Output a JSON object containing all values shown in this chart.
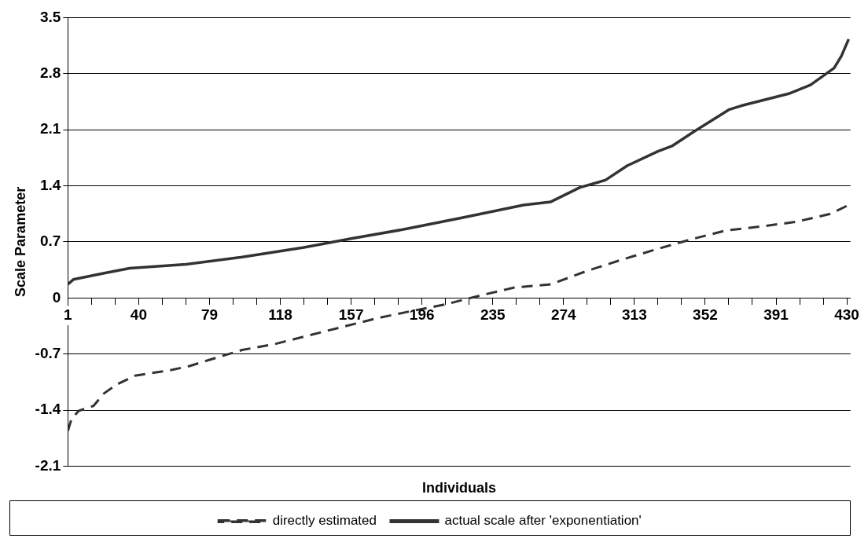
{
  "chart_data": {
    "type": "line",
    "xlabel": "Individuals",
    "ylabel": "Scale Parameter",
    "xlim": [
      1,
      432
    ],
    "ylim": [
      -2.1,
      3.5
    ],
    "xticks": [
      1,
      {
        "value": 14,
        "label": null
      },
      {
        "value": 27,
        "label": null
      },
      40,
      {
        "value": 53,
        "label": null
      },
      {
        "value": 66,
        "label": null
      },
      79,
      {
        "value": 92,
        "label": null
      },
      {
        "value": 105,
        "label": null
      },
      118,
      {
        "value": 131,
        "label": null
      },
      {
        "value": 144,
        "label": null
      },
      157,
      {
        "value": 170,
        "label": null
      },
      {
        "value": 183,
        "label": null
      },
      196,
      {
        "value": 209,
        "label": null
      },
      {
        "value": 222,
        "label": null
      },
      235,
      {
        "value": 248,
        "label": null
      },
      {
        "value": 261,
        "label": null
      },
      274,
      {
        "value": 287,
        "label": null
      },
      {
        "value": 300,
        "label": null
      },
      313,
      {
        "value": 326,
        "label": null
      },
      {
        "value": 339,
        "label": null
      },
      352,
      {
        "value": 365,
        "label": null
      },
      {
        "value": 378,
        "label": null
      },
      391,
      {
        "value": 404,
        "label": null
      },
      {
        "value": 417,
        "label": null
      },
      430
    ],
    "yticks": [
      -2.1,
      -1.4,
      -0.7,
      0,
      0.7,
      1.4,
      2.1,
      2.8,
      3.5
    ],
    "grid": "y",
    "legend": "bottom",
    "marker": "none",
    "series": [
      {
        "name": "directly estimated",
        "color": "#333333",
        "line_style": "dashed",
        "x": [
          1,
          3,
          7,
          15,
          21,
          28,
          38,
          58,
          68,
          78,
          97,
          116,
          135,
          172,
          191,
          209,
          228,
          247,
          267,
          286,
          305,
          324,
          344,
          363,
          382,
          402,
          421,
          431
        ],
        "values": [
          -1.66,
          -1.51,
          -1.41,
          -1.35,
          -1.19,
          -1.08,
          -0.97,
          -0.9,
          -0.85,
          -0.78,
          -0.65,
          -0.57,
          -0.46,
          -0.25,
          -0.16,
          -0.08,
          0.03,
          0.13,
          0.17,
          0.33,
          0.47,
          0.6,
          0.73,
          0.84,
          0.89,
          0.95,
          1.05,
          1.16
        ]
      },
      {
        "name": "actual scale after 'exponentiation'",
        "color": "#333333",
        "line_style": "solid",
        "x": [
          1,
          4,
          21,
          35,
          66,
          97,
          131,
          157,
          187,
          218,
          252,
          267,
          283,
          297,
          309,
          326,
          334,
          346,
          365,
          372,
          398,
          410,
          423,
          427,
          431
        ],
        "values": [
          0.17,
          0.23,
          0.31,
          0.37,
          0.42,
          0.51,
          0.63,
          0.74,
          0.86,
          1.0,
          1.16,
          1.2,
          1.38,
          1.47,
          1.65,
          1.83,
          1.9,
          2.08,
          2.35,
          2.4,
          2.55,
          2.66,
          2.87,
          3.02,
          3.23
        ]
      }
    ]
  }
}
